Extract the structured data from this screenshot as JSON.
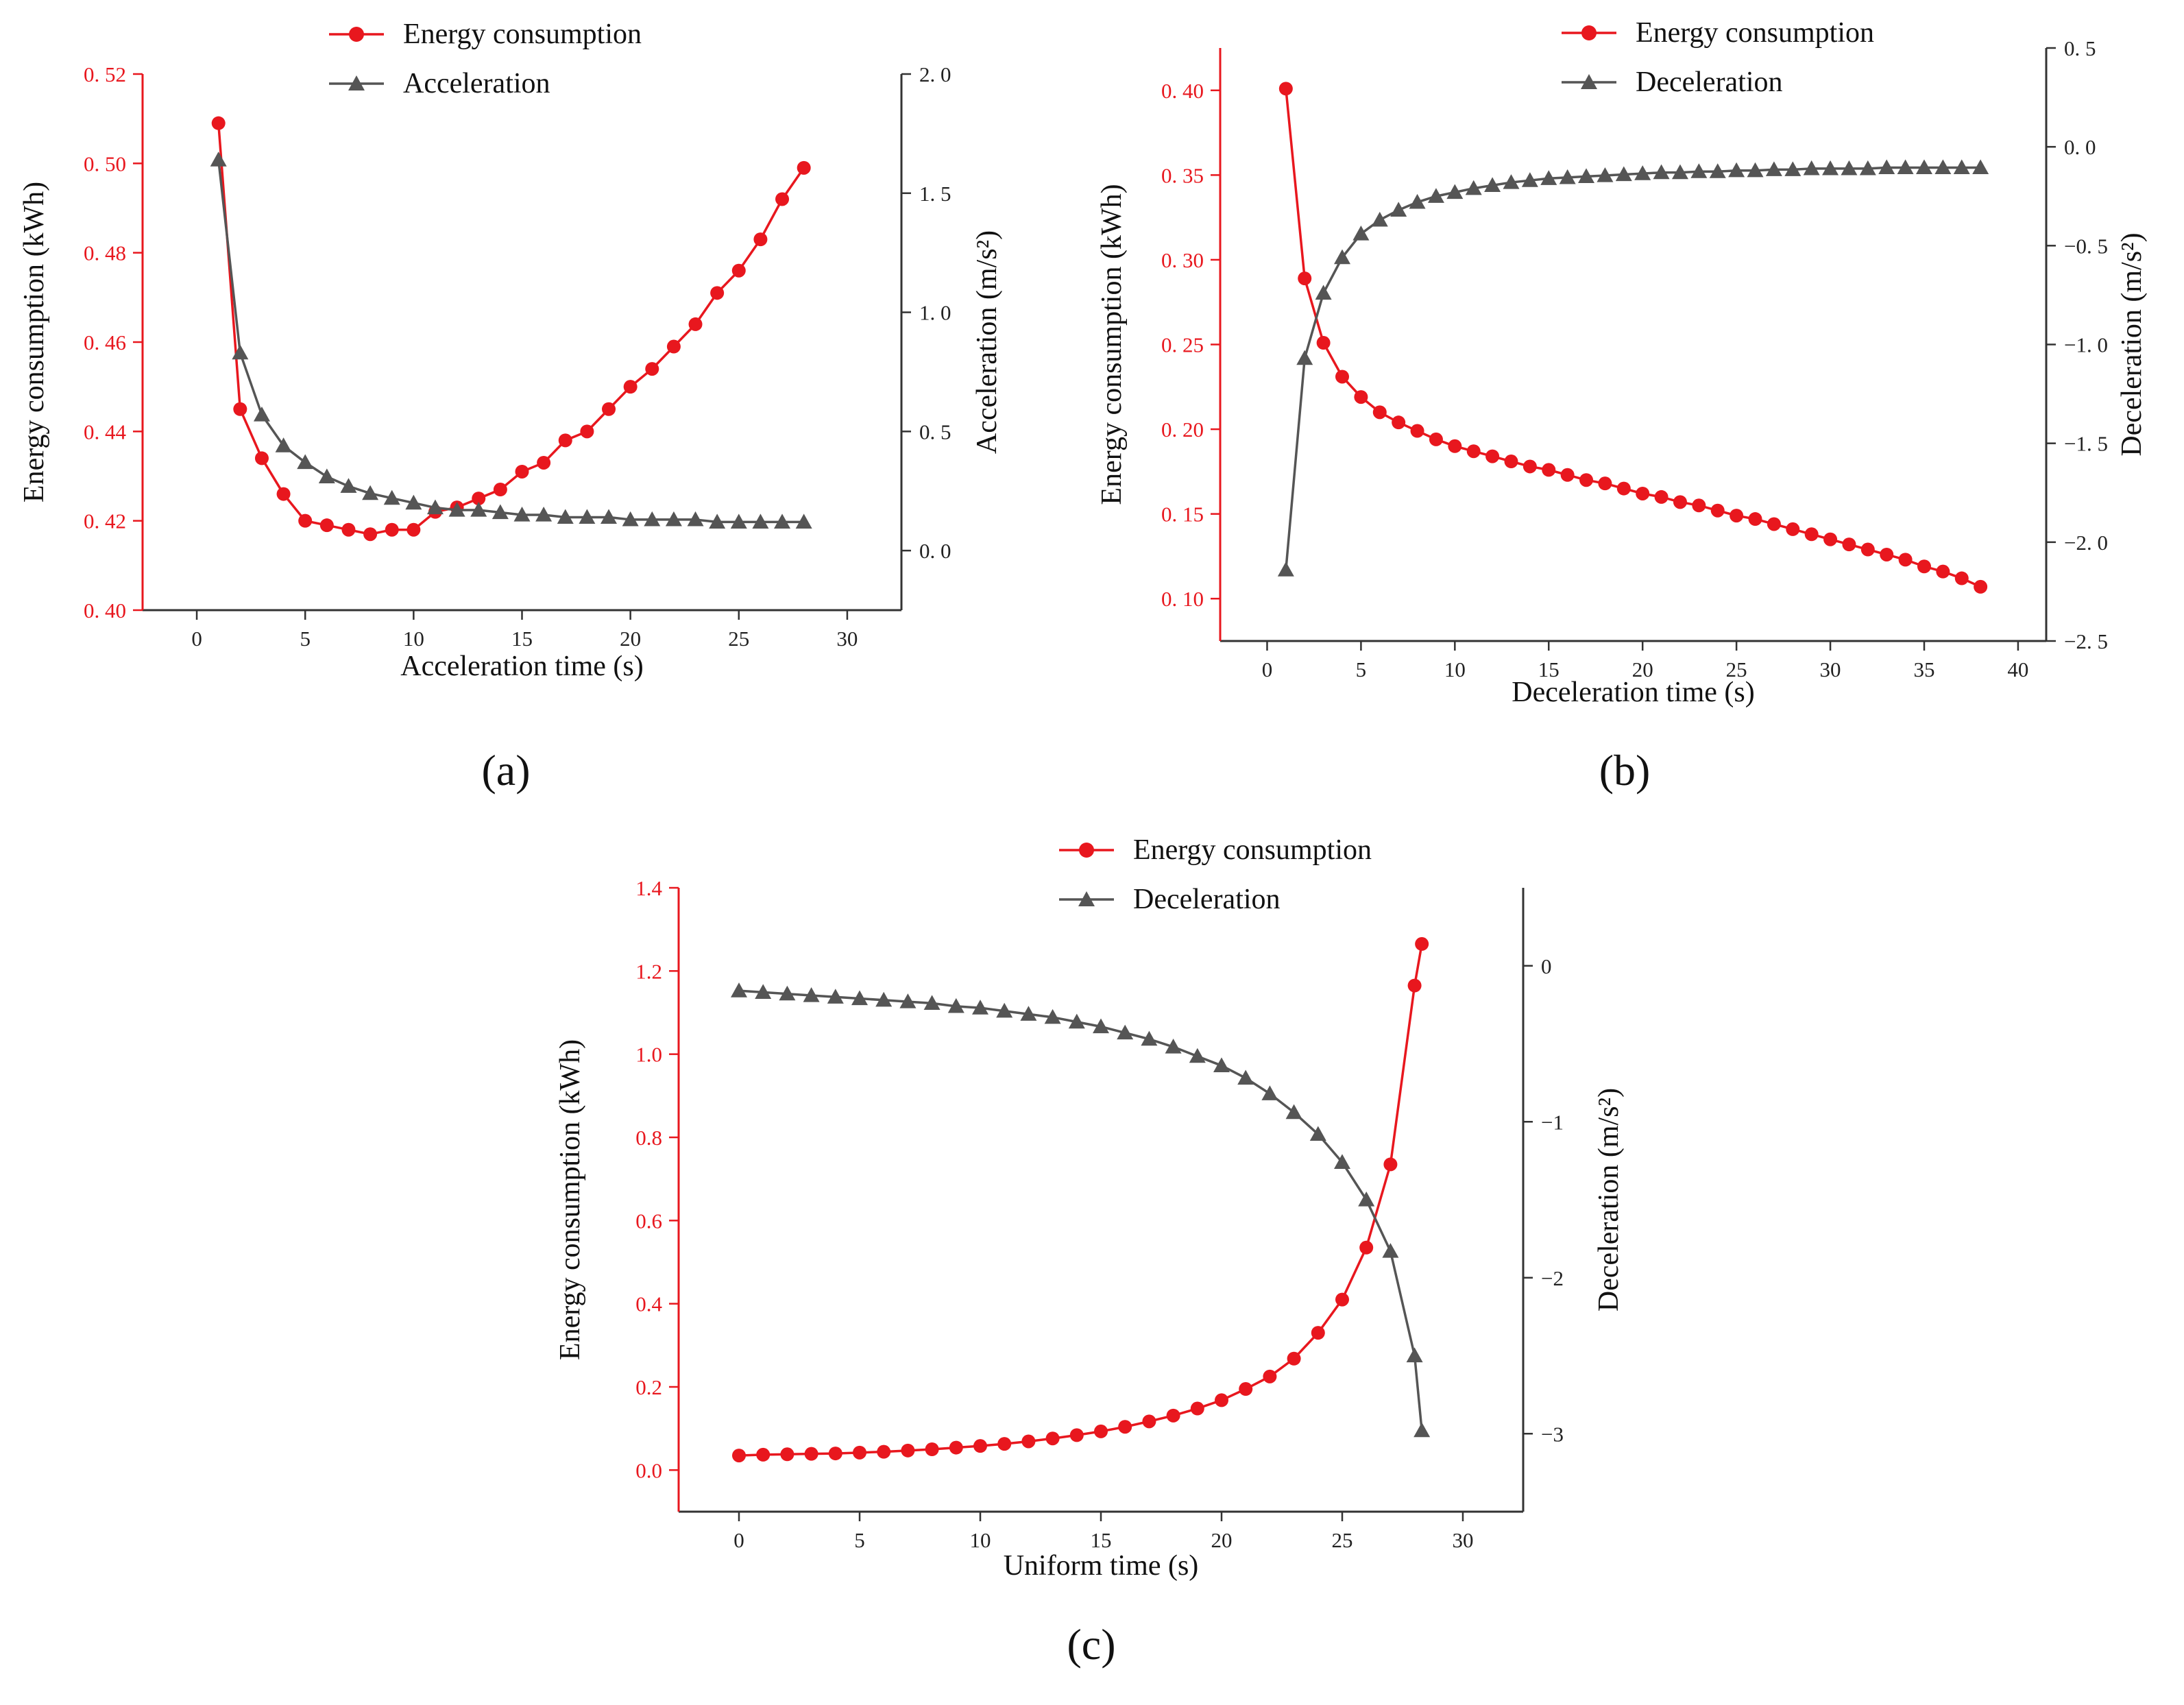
{
  "colors": {
    "energy": "#e8171e",
    "accel": "#555555",
    "axis_left": "#e8171e",
    "axis_right": "#222222",
    "frame": "#333333"
  },
  "chart_data": [
    {
      "id": "a",
      "type": "line",
      "panel_label": "(a)",
      "xlabel": "Acceleration time (s)",
      "ylabel_left": "Energy consumption (kWh)",
      "ylabel_right": "Acceleration (m/s²)",
      "xlim": [
        -2.5,
        32.5
      ],
      "ylim_left": [
        0.4,
        0.52
      ],
      "ylim_right": [
        -0.25,
        2.0
      ],
      "xticks": [
        0,
        5,
        10,
        15,
        20,
        25,
        30
      ],
      "xtick_labels": [
        "0",
        "5",
        "10",
        "15",
        "20",
        "25",
        "30"
      ],
      "yticks_left": [
        0.4,
        0.42,
        0.44,
        0.46,
        0.48,
        0.5,
        0.52
      ],
      "ytick_labels_left": [
        "0. 40",
        "0. 42",
        "0. 44",
        "0. 46",
        "0. 48",
        "0. 50",
        "0. 52"
      ],
      "yticks_right": [
        0.0,
        0.5,
        1.0,
        1.5,
        2.0
      ],
      "ytick_labels_right": [
        "0. 0",
        "0. 5",
        "1. 0",
        "1. 5",
        "2. 0"
      ],
      "legend": [
        "Energy consumption",
        "Acceleration"
      ],
      "series": [
        {
          "name": "Energy consumption",
          "axis": "left",
          "marker": "circle",
          "x": [
            1,
            2,
            3,
            4,
            5,
            6,
            7,
            8,
            9,
            10,
            11,
            12,
            13,
            14,
            15,
            16,
            17,
            18,
            19,
            20,
            21,
            22,
            23,
            24,
            25,
            26,
            27,
            28
          ],
          "values": [
            0.509,
            0.445,
            0.434,
            0.426,
            0.42,
            0.419,
            0.418,
            0.417,
            0.418,
            0.418,
            0.422,
            0.423,
            0.425,
            0.427,
            0.431,
            0.433,
            0.438,
            0.44,
            0.445,
            0.45,
            0.454,
            0.459,
            0.464,
            0.471,
            0.476,
            0.483,
            0.492,
            0.499
          ]
        },
        {
          "name": "Acceleration",
          "axis": "right",
          "marker": "triangle",
          "x": [
            1,
            2,
            3,
            4,
            5,
            6,
            7,
            8,
            9,
            10,
            11,
            12,
            13,
            14,
            15,
            16,
            17,
            18,
            19,
            20,
            21,
            22,
            23,
            24,
            25,
            26,
            27,
            28
          ],
          "values": [
            1.64,
            0.83,
            0.57,
            0.44,
            0.37,
            0.31,
            0.27,
            0.24,
            0.22,
            0.2,
            0.18,
            0.17,
            0.17,
            0.16,
            0.15,
            0.15,
            0.14,
            0.14,
            0.14,
            0.13,
            0.13,
            0.13,
            0.13,
            0.12,
            0.12,
            0.12,
            0.12,
            0.12
          ]
        }
      ]
    },
    {
      "id": "b",
      "type": "line",
      "panel_label": "(b)",
      "xlabel": "Deceleration time (s)",
      "ylabel_left": "Energy consumption (kWh)",
      "ylabel_right": "Deceleration (m/s²)",
      "xlim": [
        -2.5,
        41.5
      ],
      "ylim_left": [
        0.075,
        0.425
      ],
      "ylim_right": [
        -2.5,
        0.5
      ],
      "xticks": [
        0,
        5,
        10,
        15,
        20,
        25,
        30,
        35,
        40
      ],
      "xtick_labels": [
        "0",
        "5",
        "10",
        "15",
        "20",
        "25",
        "30",
        "35",
        "40"
      ],
      "yticks_left": [
        0.1,
        0.15,
        0.2,
        0.25,
        0.3,
        0.35,
        0.4
      ],
      "ytick_labels_left": [
        "0. 10",
        "0. 15",
        "0. 20",
        "0. 25",
        "0. 30",
        "0. 35",
        "0. 40"
      ],
      "yticks_right": [
        -2.5,
        -2.0,
        -1.5,
        -1.0,
        -0.5,
        0.0,
        0.5
      ],
      "ytick_labels_right": [
        "−2. 5",
        "−2. 0",
        "−1. 5",
        "−1. 0",
        "−0. 5",
        "0. 0",
        "0. 5"
      ],
      "legend": [
        "Energy consumption",
        "Deceleration"
      ],
      "series": [
        {
          "name": "Energy consumption",
          "axis": "left",
          "marker": "circle",
          "x": [
            1,
            2,
            3,
            4,
            5,
            6,
            7,
            8,
            9,
            10,
            11,
            12,
            13,
            14,
            15,
            16,
            17,
            18,
            19,
            20,
            21,
            22,
            23,
            24,
            25,
            26,
            27,
            28,
            29,
            30,
            31,
            32,
            33,
            34,
            35,
            36,
            37,
            38
          ],
          "values": [
            0.401,
            0.289,
            0.251,
            0.231,
            0.219,
            0.21,
            0.204,
            0.199,
            0.194,
            0.19,
            0.187,
            0.184,
            0.181,
            0.178,
            0.176,
            0.173,
            0.17,
            0.168,
            0.165,
            0.162,
            0.16,
            0.157,
            0.155,
            0.152,
            0.149,
            0.147,
            0.144,
            0.141,
            0.138,
            0.135,
            0.132,
            0.129,
            0.126,
            0.123,
            0.119,
            0.116,
            0.112,
            0.107
          ]
        },
        {
          "name": "Deceleration",
          "axis": "right",
          "marker": "triangle",
          "x": [
            1,
            2,
            3,
            4,
            5,
            6,
            7,
            8,
            9,
            10,
            11,
            12,
            13,
            14,
            15,
            16,
            17,
            18,
            19,
            20,
            21,
            22,
            23,
            24,
            25,
            26,
            27,
            28,
            29,
            30,
            31,
            32,
            33,
            34,
            35,
            36,
            37,
            38
          ],
          "values": [
            -2.14,
            -1.07,
            -0.74,
            -0.56,
            -0.44,
            -0.37,
            -0.32,
            -0.28,
            -0.25,
            -0.23,
            -0.21,
            -0.195,
            -0.18,
            -0.17,
            -0.16,
            -0.155,
            -0.15,
            -0.145,
            -0.14,
            -0.135,
            -0.13,
            -0.13,
            -0.125,
            -0.125,
            -0.12,
            -0.12,
            -0.115,
            -0.115,
            -0.11,
            -0.11,
            -0.11,
            -0.11,
            -0.105,
            -0.105,
            -0.105,
            -0.105,
            -0.105,
            -0.105
          ]
        }
      ]
    },
    {
      "id": "c",
      "type": "line",
      "panel_label": "(c)",
      "xlabel": "Uniform time (s)",
      "ylabel_left": "Energy consumption (kWh)",
      "ylabel_right": "Deceleration (m/s²)",
      "xlim": [
        -2.5,
        32.5
      ],
      "ylim_left": [
        -0.1,
        1.4
      ],
      "ylim_right": [
        -3.5,
        0.5
      ],
      "xticks": [
        0,
        5,
        10,
        15,
        20,
        25,
        30
      ],
      "xtick_labels": [
        "0",
        "5",
        "10",
        "15",
        "20",
        "25",
        "30"
      ],
      "yticks_left": [
        0.0,
        0.2,
        0.4,
        0.6,
        0.8,
        1.0,
        1.2,
        1.4
      ],
      "ytick_labels_left": [
        "0.0",
        "0.2",
        "0.4",
        "0.6",
        "0.8",
        "1.0",
        "1.2",
        "1.4"
      ],
      "yticks_right": [
        -3,
        -2,
        -1,
        0
      ],
      "ytick_labels_right": [
        "−3",
        "−2",
        "−1",
        "0"
      ],
      "legend": [
        "Energy consumption",
        "Deceleration"
      ],
      "series": [
        {
          "name": "Energy consumption",
          "axis": "left",
          "marker": "circle",
          "x": [
            0,
            1,
            2,
            3,
            4,
            5,
            6,
            7,
            8,
            9,
            10,
            11,
            12,
            13,
            14,
            15,
            16,
            17,
            18,
            19,
            20,
            21,
            22,
            23,
            24,
            25,
            26,
            27,
            28,
            28.3
          ],
          "values": [
            0.035,
            0.037,
            0.038,
            0.039,
            0.04,
            0.042,
            0.044,
            0.047,
            0.05,
            0.054,
            0.058,
            0.063,
            0.069,
            0.076,
            0.084,
            0.093,
            0.104,
            0.117,
            0.131,
            0.148,
            0.168,
            0.195,
            0.225,
            0.268,
            0.33,
            0.41,
            0.535,
            0.735,
            1.165,
            1.265
          ]
        },
        {
          "name": "Deceleration",
          "axis": "right",
          "marker": "triangle",
          "x": [
            0,
            1,
            2,
            3,
            4,
            5,
            6,
            7,
            8,
            9,
            10,
            11,
            12,
            13,
            14,
            15,
            16,
            17,
            18,
            19,
            20,
            21,
            22,
            23,
            24,
            25,
            26,
            27,
            28,
            28.3
          ],
          "values": [
            -0.16,
            -0.17,
            -0.18,
            -0.19,
            -0.2,
            -0.21,
            -0.22,
            -0.23,
            -0.24,
            -0.26,
            -0.27,
            -0.29,
            -0.31,
            -0.33,
            -0.36,
            -0.39,
            -0.43,
            -0.47,
            -0.52,
            -0.58,
            -0.64,
            -0.72,
            -0.82,
            -0.94,
            -1.08,
            -1.26,
            -1.5,
            -1.83,
            -2.5,
            -2.98
          ]
        }
      ]
    }
  ]
}
